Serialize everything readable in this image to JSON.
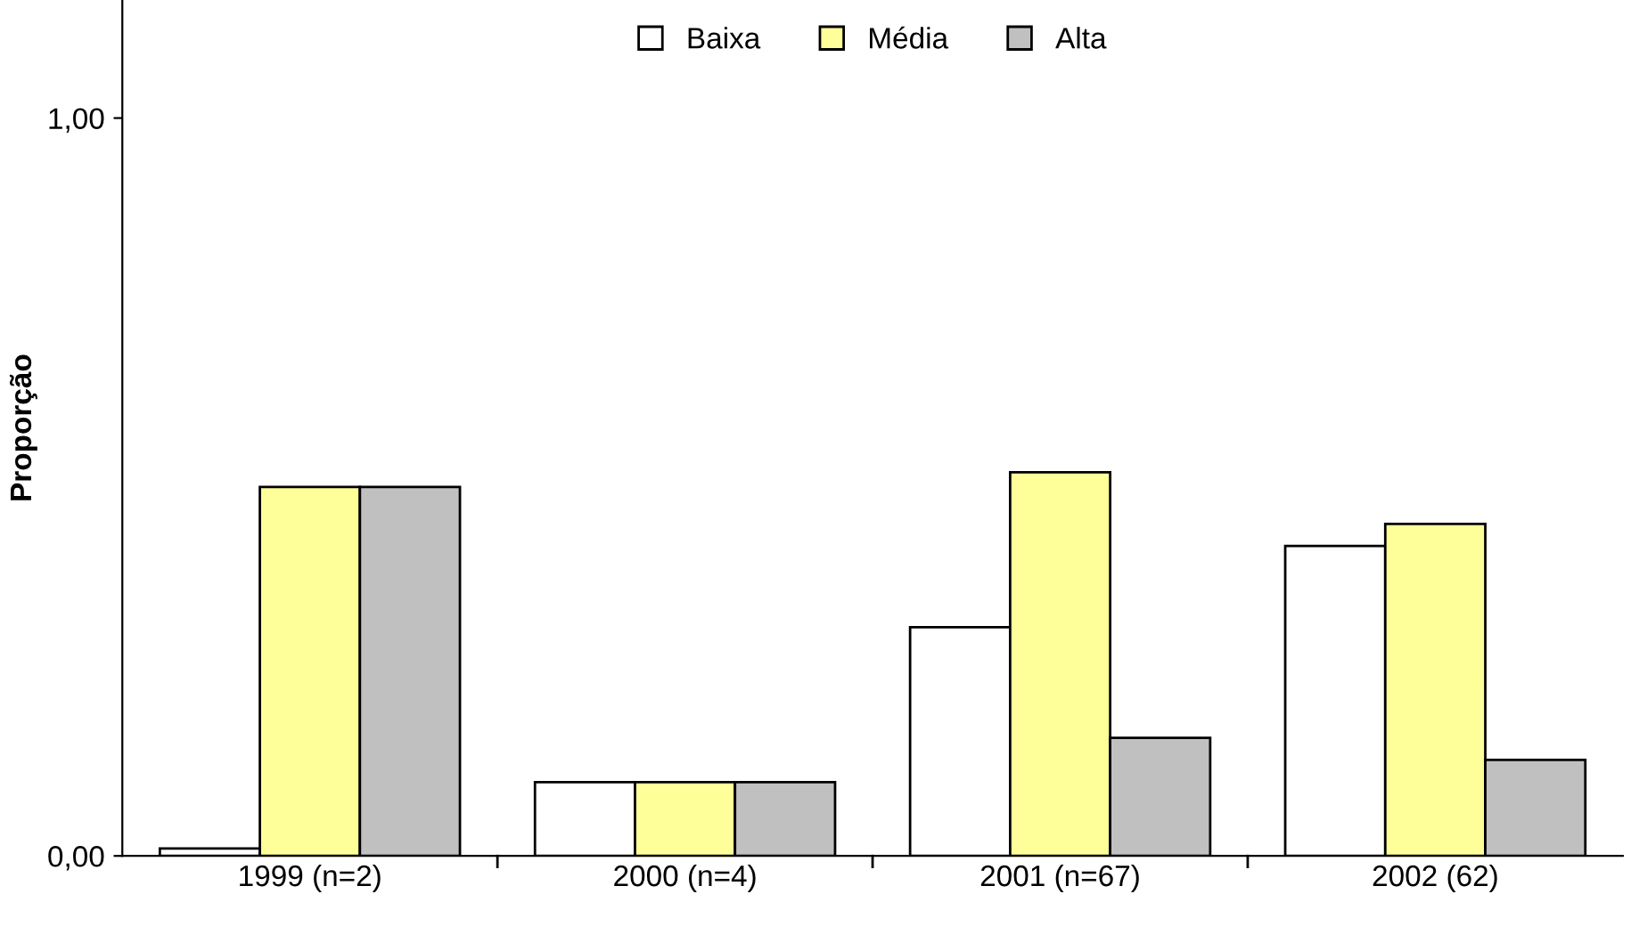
{
  "chart_data": {
    "type": "bar",
    "ylabel": "Proporção",
    "categories": [
      "1999 (n=2)",
      "2000 (n=4)",
      "2001 (n=67)",
      "2002 (62)"
    ],
    "series": [
      {
        "name": "Baixa",
        "color": "#ffffff",
        "values": [
          0.01,
          0.1,
          0.31,
          0.42
        ]
      },
      {
        "name": "Média",
        "color": "#ffff99",
        "values": [
          0.5,
          0.1,
          0.52,
          0.45
        ]
      },
      {
        "name": "Alta",
        "color": "#c0c0c0",
        "values": [
          0.5,
          0.1,
          0.16,
          0.13
        ]
      }
    ],
    "ylim": [
      0,
      1.16
    ],
    "yticks": [
      {
        "value": 0,
        "label": "0,00"
      },
      {
        "value": 1,
        "label": "1,00"
      }
    ],
    "grid": false,
    "legend": "top"
  }
}
